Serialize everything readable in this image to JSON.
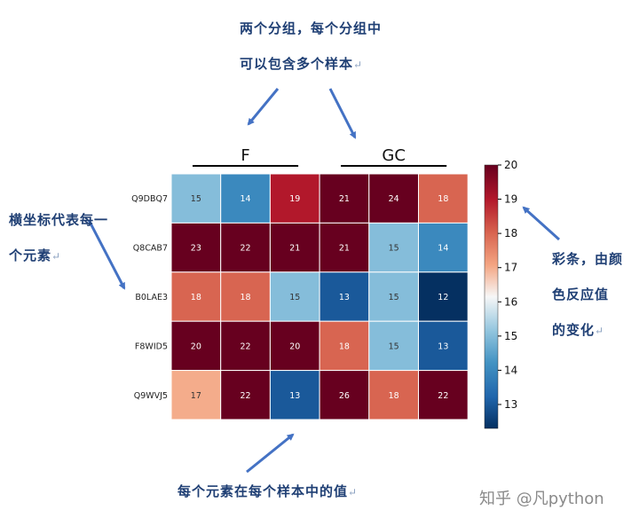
{
  "chart_data": {
    "type": "heatmap",
    "rows": [
      "Q9DBQ7",
      "Q8CAB7",
      "B0LAE3",
      "F8WID5",
      "Q9WVJ5"
    ],
    "groups": [
      {
        "name": "F",
        "columns": 3
      },
      {
        "name": "GC",
        "columns": 3
      }
    ],
    "values": [
      [
        15,
        14,
        19,
        21,
        24,
        18
      ],
      [
        23,
        22,
        21,
        21,
        15,
        14
      ],
      [
        18,
        18,
        15,
        13,
        15,
        12
      ],
      [
        20,
        22,
        20,
        18,
        15,
        13
      ],
      [
        17,
        22,
        13,
        26,
        18,
        22
      ]
    ],
    "colorbar": {
      "min": 12.3,
      "max": 20,
      "ticks": [
        13,
        14,
        15,
        16,
        17,
        18,
        19,
        20
      ],
      "colormap": "RdBu_r",
      "low_color": "#053061",
      "mid_color": "#f7f7f7",
      "high_color": "#67001f"
    },
    "annotations": {
      "top": [
        "两个分组，每个分组中",
        "可以包含多个样本"
      ],
      "left": [
        "横坐标代表每一",
        "个元素"
      ],
      "right": [
        "彩条，由颜",
        "色反应值",
        "的变化"
      ],
      "bottom": "每个元素在每个样本中的值",
      "return_mark": "↵"
    },
    "arrow_color": "#4472c4"
  },
  "watermark": "知乎 @凡python"
}
